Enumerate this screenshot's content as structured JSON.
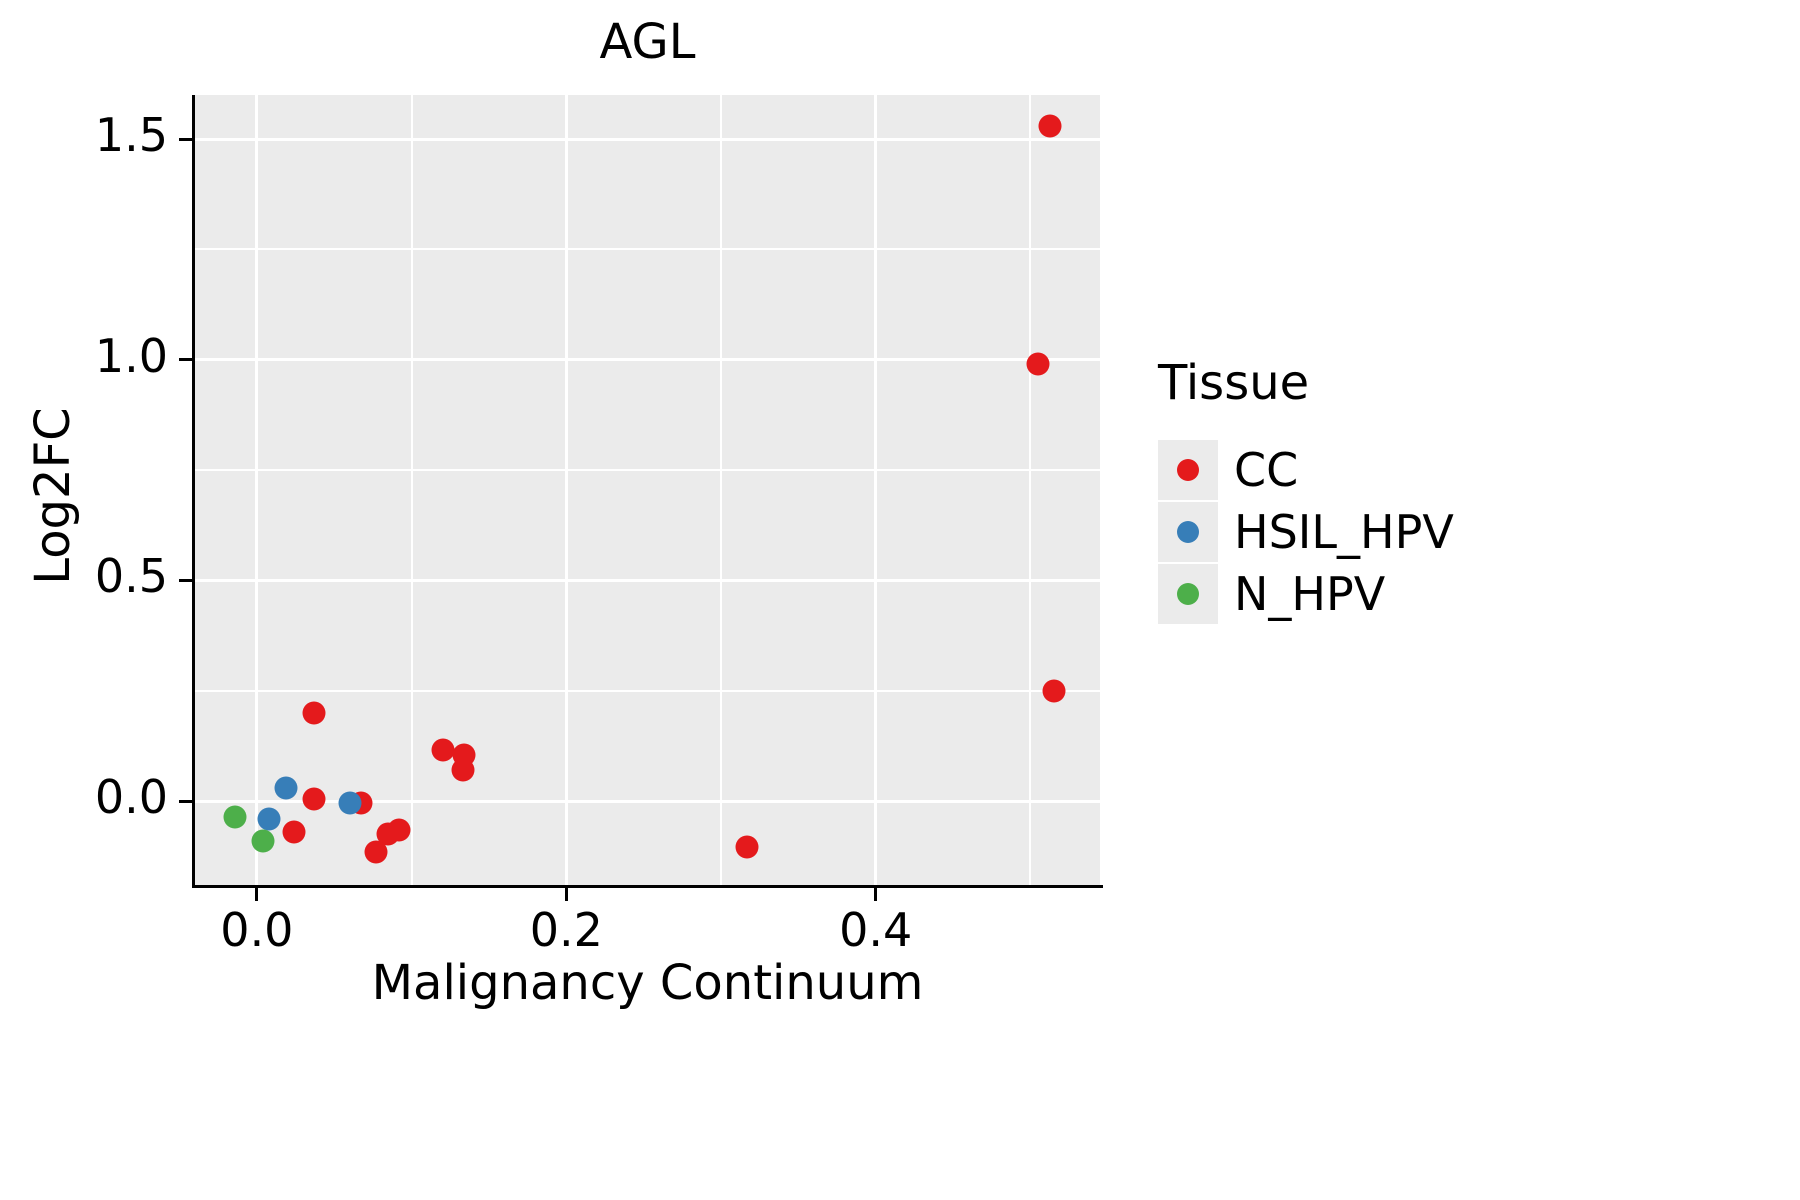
{
  "chart_data": {
    "type": "scatter",
    "title": "AGL",
    "xlabel": "Malignancy Continuum",
    "ylabel": "Log2FC",
    "xlim": [
      -0.04,
      0.545
    ],
    "ylim": [
      -0.19,
      1.6
    ],
    "x_major_ticks": [
      0.0,
      0.2,
      0.4
    ],
    "x_tick_labels": [
      "0.0",
      "0.2",
      "0.4"
    ],
    "x_minor_ticks": [
      0.1,
      0.3,
      0.5
    ],
    "y_major_ticks": [
      0.0,
      0.5,
      1.0,
      1.5
    ],
    "y_tick_labels": [
      "0.0",
      "0.5",
      "1.0",
      "1.5"
    ],
    "y_minor_ticks": [
      0.25,
      0.75,
      1.25
    ],
    "grid": true,
    "panel_bg": "#EBEBEB",
    "legend_title": "Tissue",
    "legend_position": "right",
    "series": [
      {
        "name": "CC",
        "color": "#E41A1C",
        "points": [
          [
            0.513,
            1.53
          ],
          [
            0.505,
            0.99
          ],
          [
            0.515,
            0.25
          ],
          [
            0.037,
            0.2
          ],
          [
            0.12,
            0.115
          ],
          [
            0.134,
            0.105
          ],
          [
            0.133,
            0.07
          ],
          [
            0.037,
            0.005
          ],
          [
            0.067,
            -0.005
          ],
          [
            0.024,
            -0.07
          ],
          [
            0.085,
            -0.075
          ],
          [
            0.092,
            -0.065
          ],
          [
            0.077,
            -0.115
          ],
          [
            0.317,
            -0.105
          ]
        ]
      },
      {
        "name": "HSIL_HPV",
        "color": "#377EB8",
        "points": [
          [
            0.019,
            0.03
          ],
          [
            0.008,
            -0.04
          ],
          [
            0.06,
            -0.005
          ]
        ]
      },
      {
        "name": "N_HPV",
        "color": "#4DAF4A",
        "points": [
          [
            -0.014,
            -0.035
          ],
          [
            0.004,
            -0.09
          ]
        ]
      }
    ]
  }
}
